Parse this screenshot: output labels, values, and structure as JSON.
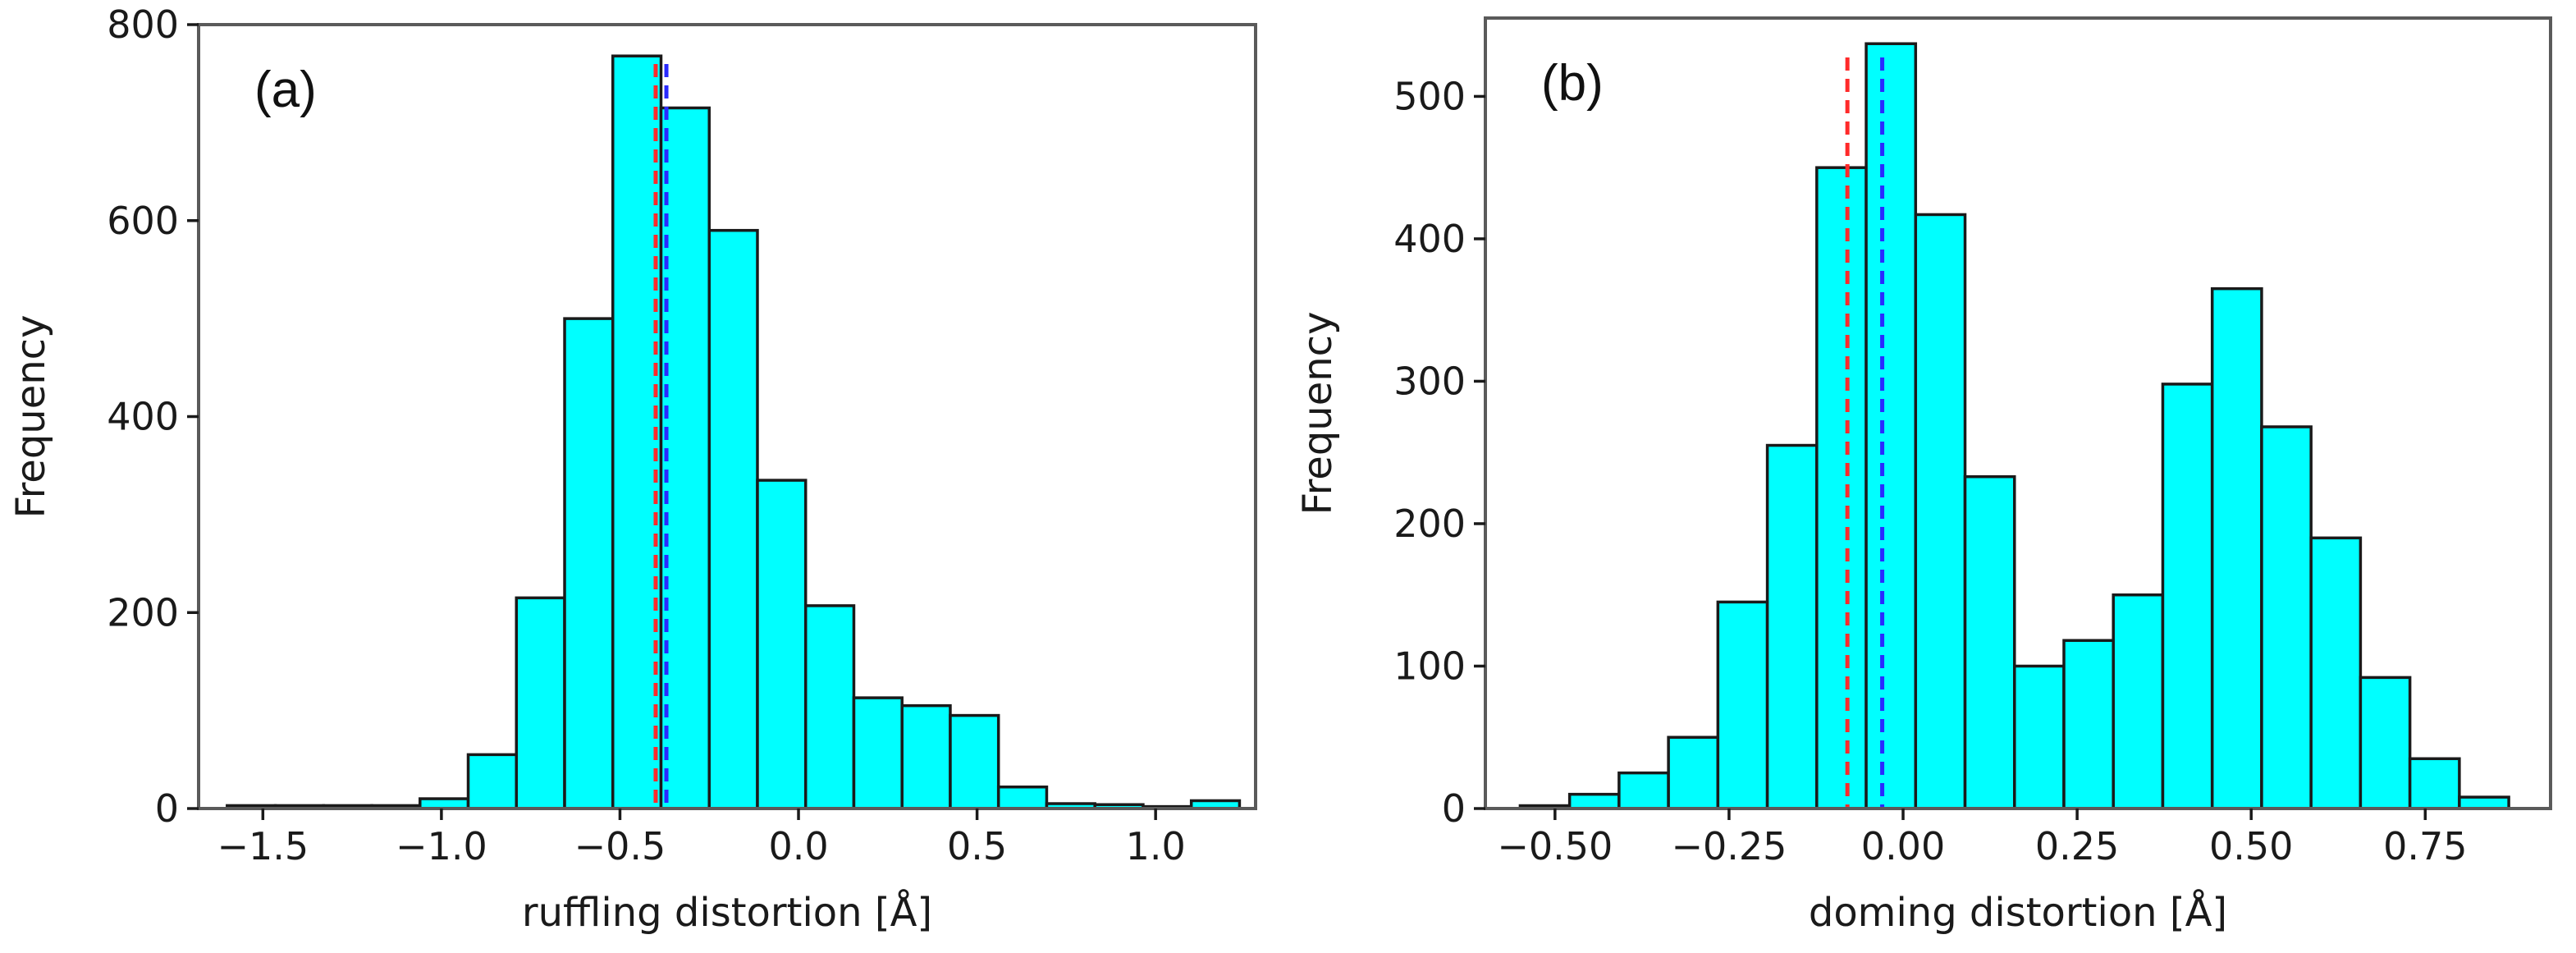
{
  "chart_data": [
    {
      "type": "bar",
      "panel_label": "(a)",
      "xlabel": "ruffling distortion [Å]",
      "ylabel": "Frequency",
      "xlim": [
        -1.68,
        1.28
      ],
      "ylim": [
        0,
        800
      ],
      "xticks": [
        -1.5,
        -1.0,
        -0.5,
        0.0,
        0.5,
        1.0
      ],
      "xtick_labels": [
        "−1.5",
        "−1.0",
        "−0.5",
        "0.0",
        "0.5",
        "1.0"
      ],
      "yticks": [
        0,
        200,
        400,
        600,
        800
      ],
      "ytick_labels": [
        "0",
        "200",
        "400",
        "600",
        "800"
      ],
      "bin_edges": [
        -1.6,
        -1.465,
        -1.33,
        -1.195,
        -1.06,
        -0.925,
        -0.79,
        -0.655,
        -0.52,
        -0.385,
        -0.25,
        -0.115,
        0.02,
        0.155,
        0.29,
        0.425,
        0.56,
        0.695,
        0.83,
        0.965,
        1.1,
        1.235
      ],
      "values": [
        3,
        3,
        3,
        3,
        10,
        55,
        215,
        500,
        768,
        715,
        590,
        335,
        207,
        113,
        105,
        95,
        22,
        5,
        4,
        2,
        8
      ],
      "reference_lines": [
        {
          "x": -0.4,
          "color": "#ff2a2a"
        },
        {
          "x": -0.37,
          "color": "#2a2aff"
        }
      ]
    },
    {
      "type": "bar",
      "panel_label": "(b)",
      "xlabel": "doming distortion [Å]",
      "ylabel": "Frequency",
      "xlim": [
        -0.6,
        0.93
      ],
      "ylim": [
        0,
        555
      ],
      "xticks": [
        -0.5,
        -0.25,
        0.0,
        0.25,
        0.5,
        0.75
      ],
      "xtick_labels": [
        "−0.50",
        "−0.25",
        "0.00",
        "0.25",
        "0.50",
        "0.75"
      ],
      "yticks": [
        0,
        100,
        200,
        300,
        400,
        500
      ],
      "ytick_labels": [
        "0",
        "100",
        "200",
        "300",
        "400",
        "500"
      ],
      "bin_edges": [
        -0.55,
        -0.479,
        -0.408,
        -0.337,
        -0.266,
        -0.195,
        -0.124,
        -0.053,
        0.018,
        0.089,
        0.16,
        0.231,
        0.302,
        0.373,
        0.444,
        0.515,
        0.586,
        0.657,
        0.728,
        0.799,
        0.87
      ],
      "values": [
        2,
        10,
        25,
        50,
        145,
        255,
        450,
        537,
        417,
        233,
        100,
        118,
        150,
        298,
        365,
        268,
        190,
        92,
        35,
        8
      ],
      "reference_lines": [
        {
          "x": -0.08,
          "color": "#ff2a2a"
        },
        {
          "x": -0.03,
          "color": "#2a2aff"
        }
      ]
    }
  ]
}
